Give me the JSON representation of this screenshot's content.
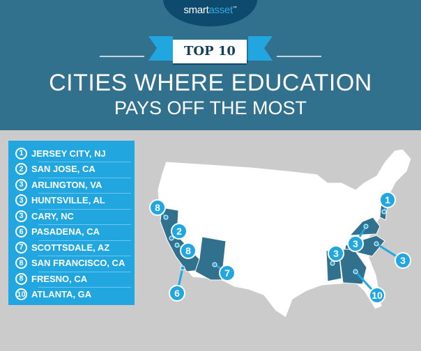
{
  "brand": {
    "name_part1": "smart",
    "name_part2": "asset",
    "trademark": "™"
  },
  "badge": "TOP 10",
  "title": {
    "line1": "CITIES WHERE EDUCATION",
    "line2": "PAYS OFF THE MOST"
  },
  "colors": {
    "header": "#31718e",
    "panel": "#22a6e0",
    "highlight_state": "#31718e",
    "marker": "#22a6e0",
    "background": "#cbcbcb"
  },
  "rankings": [
    {
      "rank": "1",
      "city": "JERSEY CITY, NJ"
    },
    {
      "rank": "2",
      "city": "SAN JOSE, CA"
    },
    {
      "rank": "3",
      "city": "ARLINGTON, VA"
    },
    {
      "rank": "3",
      "city": "HUNTSVILLE, AL"
    },
    {
      "rank": "3",
      "city": "CARY, NC"
    },
    {
      "rank": "6",
      "city": "PASADENA, CA"
    },
    {
      "rank": "7",
      "city": "SCOTTSDALE, AZ"
    },
    {
      "rank": "8",
      "city": "SAN FRANCISCO, CA"
    },
    {
      "rank": "8",
      "city": "FRESNO, CA"
    },
    {
      "rank": "10",
      "city": "ATLANTA, GA"
    }
  ],
  "map_markers": [
    {
      "label": "8",
      "state": "CA"
    },
    {
      "label": "2",
      "state": "CA"
    },
    {
      "label": "8",
      "state": "CA"
    },
    {
      "label": "6",
      "state": "CA"
    },
    {
      "label": "7",
      "state": "AZ"
    },
    {
      "label": "3",
      "state": "AL"
    },
    {
      "label": "3",
      "state": "VA"
    },
    {
      "label": "3",
      "state": "NC"
    },
    {
      "label": "10",
      "state": "GA"
    },
    {
      "label": "1",
      "state": "NJ"
    }
  ],
  "highlighted_states": [
    "CA",
    "AZ",
    "AL",
    "GA",
    "NC",
    "VA",
    "NJ"
  ]
}
